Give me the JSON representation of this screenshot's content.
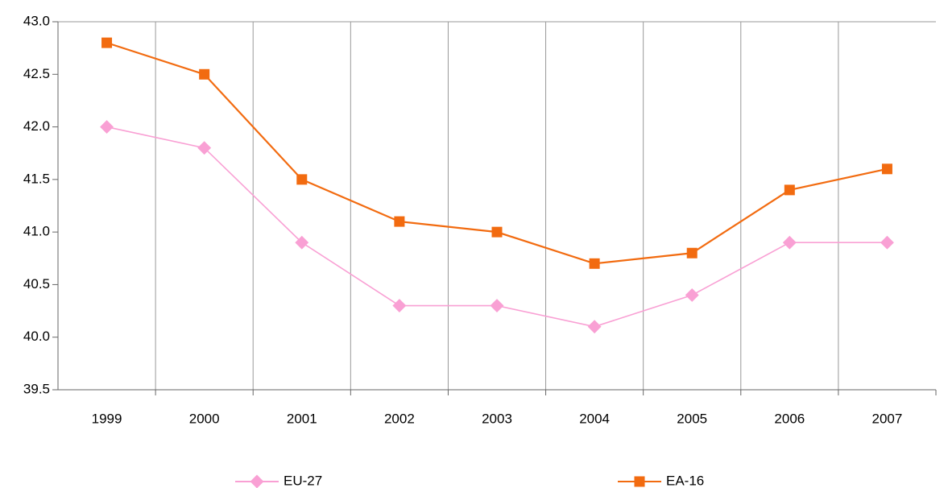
{
  "chart_data": {
    "type": "line",
    "categories": [
      "1999",
      "2000",
      "2001",
      "2002",
      "2003",
      "2004",
      "2005",
      "2006",
      "2007"
    ],
    "series": [
      {
        "name": "EU-27",
        "color": "#f9a0d4",
        "marker": "diamond",
        "values": [
          42.0,
          41.8,
          40.9,
          40.3,
          40.3,
          40.1,
          40.4,
          40.9,
          40.9
        ]
      },
      {
        "name": "EA-16",
        "color": "#f26b10",
        "marker": "square",
        "values": [
          42.8,
          42.5,
          41.5,
          41.1,
          41.0,
          40.7,
          40.8,
          41.4,
          41.6
        ]
      }
    ],
    "ylim": [
      39.5,
      43.0
    ],
    "yticks": [
      39.5,
      {
        "value": 40,
        "label": "40.0"
      },
      40.5,
      {
        "value": 41,
        "label": "41.0"
      },
      41.5,
      {
        "value": 42,
        "label": "42.0"
      },
      42.5,
      {
        "value": 43,
        "label": "43.0"
      }
    ],
    "grid": "x",
    "legend": "bottom"
  }
}
